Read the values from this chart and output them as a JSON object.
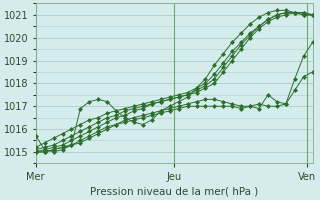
{
  "title": "Pression niveau de la mer( hPa )",
  "bg_color": "#d4ecec",
  "grid_color": "#b0cccc",
  "line_color": "#2d6e2d",
  "xlim": [
    0,
    48
  ],
  "ylim": [
    1014.5,
    1021.5
  ],
  "yticks": [
    1015,
    1016,
    1017,
    1018,
    1019,
    1020,
    1021
  ],
  "xtick_labels": [
    "Mer",
    "Jeu",
    "Ven"
  ],
  "xtick_positions": [
    0,
    24,
    47
  ],
  "vline_positions": [
    0,
    24,
    47
  ],
  "series": [
    [
      1015.7,
      1015.1,
      1015.0,
      1015.1,
      1015.3,
      1016.9,
      1017.2,
      1017.3,
      1017.2,
      1016.8,
      1016.5,
      1016.3,
      1016.2,
      1016.4,
      1016.8,
      1017.0,
      1017.2,
      1017.4,
      1017.8,
      1018.2,
      1018.8,
      1019.3,
      1019.8,
      1020.2,
      1020.6,
      1020.9,
      1021.1,
      1021.2,
      1021.2,
      1021.1,
      1021.0,
      1021.0
    ],
    [
      1015.0,
      1015.0,
      1015.1,
      1015.2,
      1015.3,
      1015.4,
      1015.6,
      1015.8,
      1016.0,
      1016.2,
      1016.4,
      1016.5,
      1016.6,
      1016.7,
      1016.8,
      1016.9,
      1017.0,
      1017.1,
      1017.2,
      1017.3,
      1017.3,
      1017.2,
      1017.1,
      1017.0,
      1017.0,
      1016.9,
      1017.5,
      1017.2,
      1017.1,
      1018.2,
      1019.2,
      1019.8
    ],
    [
      1015.0,
      1015.0,
      1015.1,
      1015.2,
      1015.3,
      1015.5,
      1015.7,
      1015.9,
      1016.1,
      1016.2,
      1016.3,
      1016.4,
      1016.5,
      1016.6,
      1016.7,
      1016.8,
      1016.9,
      1017.0,
      1017.0,
      1017.0,
      1017.0,
      1017.0,
      1017.0,
      1016.9,
      1017.0,
      1017.1,
      1017.0,
      1017.0,
      1017.1,
      1017.7,
      1018.3,
      1018.5
    ],
    [
      1015.0,
      1015.1,
      1015.2,
      1015.3,
      1015.5,
      1015.7,
      1015.9,
      1016.1,
      1016.3,
      1016.5,
      1016.6,
      1016.8,
      1016.9,
      1017.1,
      1017.2,
      1017.3,
      1017.4,
      1017.5,
      1017.6,
      1017.8,
      1018.0,
      1018.5,
      1019.0,
      1019.5,
      1020.0,
      1020.4,
      1020.7,
      1020.9,
      1021.0,
      1021.1,
      1021.1,
      1021.0
    ],
    [
      1015.1,
      1015.2,
      1015.3,
      1015.5,
      1015.7,
      1015.9,
      1016.1,
      1016.3,
      1016.5,
      1016.6,
      1016.8,
      1016.9,
      1017.0,
      1017.1,
      1017.2,
      1017.3,
      1017.4,
      1017.5,
      1017.7,
      1017.9,
      1018.2,
      1018.7,
      1019.2,
      1019.7,
      1020.1,
      1020.5,
      1020.8,
      1021.0,
      1021.1,
      1021.1,
      1021.1,
      1021.0
    ],
    [
      1015.2,
      1015.4,
      1015.6,
      1015.8,
      1016.0,
      1016.2,
      1016.4,
      1016.5,
      1016.7,
      1016.8,
      1016.9,
      1017.0,
      1017.1,
      1017.2,
      1017.3,
      1017.4,
      1017.5,
      1017.6,
      1017.8,
      1018.0,
      1018.4,
      1018.9,
      1019.4,
      1019.8,
      1020.2,
      1020.5,
      1020.8,
      1021.0,
      1021.1,
      1021.1,
      1021.0,
      1021.0
    ]
  ]
}
